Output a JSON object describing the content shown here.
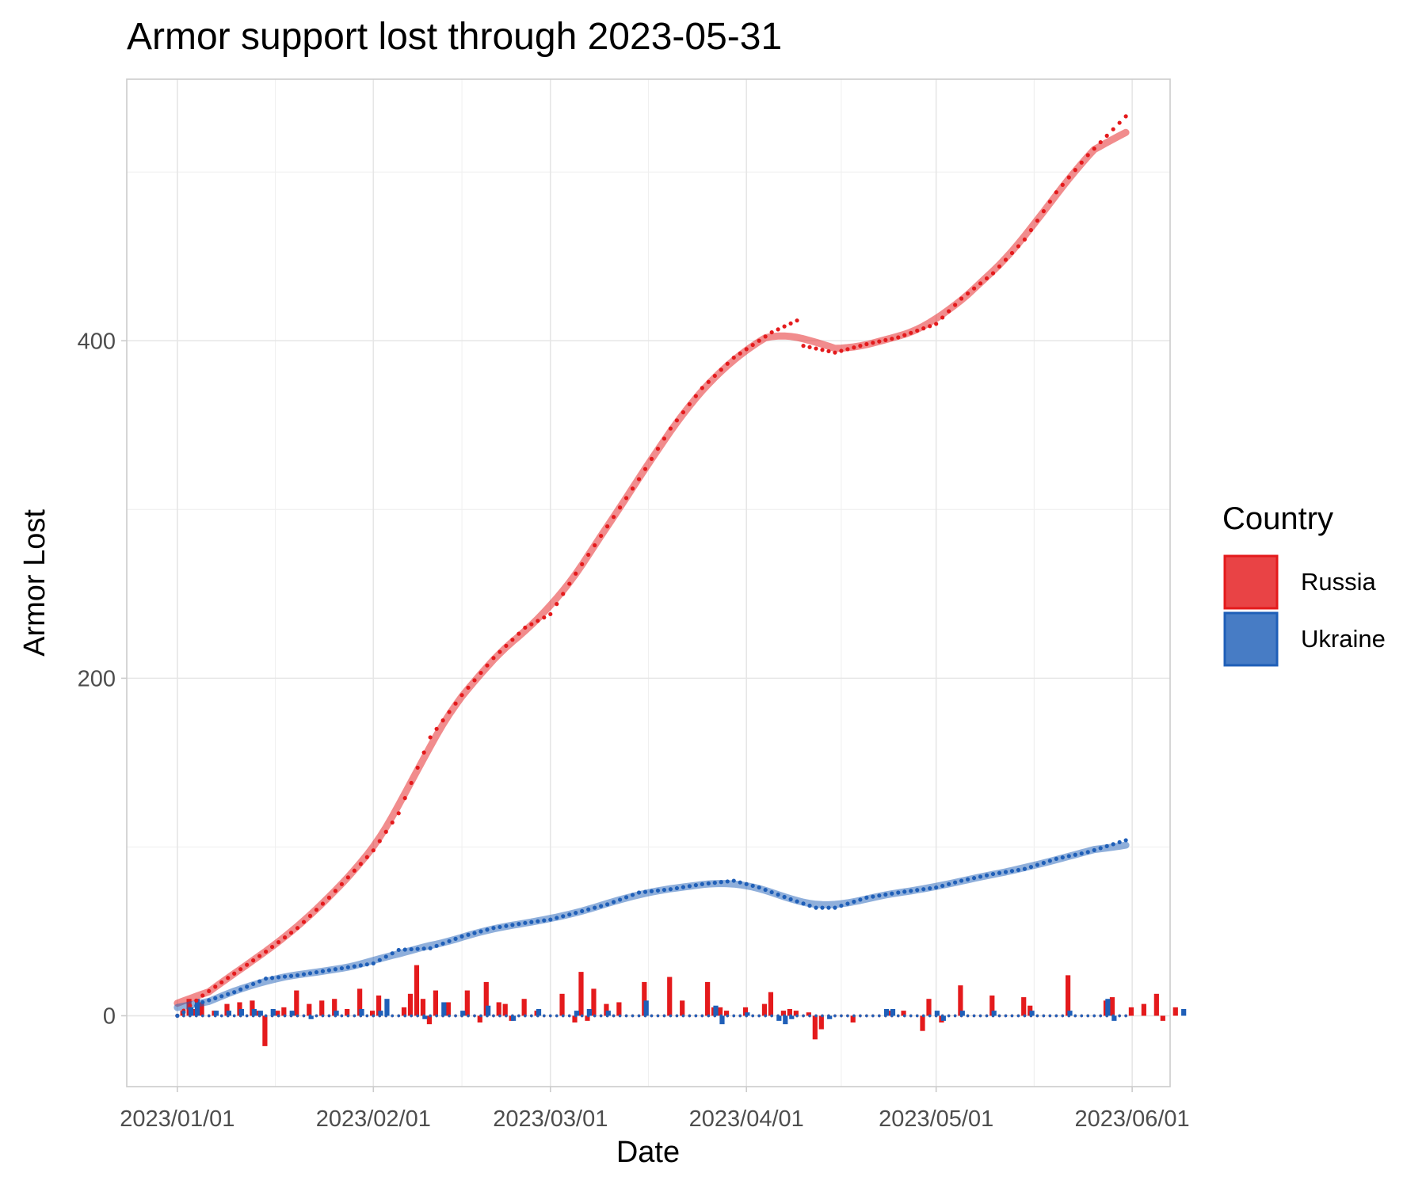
{
  "chart_data": {
    "type": "line",
    "title": "Armor support lost through 2023-05-31",
    "xlabel": "Date",
    "ylabel": "Armor Lost",
    "x_ticks": [
      "2023-01-01",
      "2023-02-01",
      "2023-03-01",
      "2023-04-01",
      "2023-05-01",
      "2023-06-01"
    ],
    "x_tick_labels": [
      "2023/01/01",
      "2023/02/01",
      "2023/03/01",
      "2023/04/01",
      "2023/05/01",
      "2023/06/01"
    ],
    "y_ticks": [
      0,
      200,
      400
    ],
    "y_tick_labels": [
      "0",
      "200",
      "400"
    ],
    "xlim": [
      "2022-12-24",
      "2023-06-07"
    ],
    "ylim": [
      -42,
      555
    ],
    "grid": true,
    "legend": {
      "title": "Country",
      "position": "right"
    },
    "marks": [
      "cumulative points",
      "smoothed trend line",
      "daily bars"
    ],
    "series": [
      {
        "name": "Russia",
        "color": "#e41a1c",
        "cumulative_anchors": [
          [
            "2023-01-01",
            0
          ],
          [
            "2023-01-05",
            12
          ],
          [
            "2023-01-10",
            25
          ],
          [
            "2023-01-15",
            38
          ],
          [
            "2023-01-20",
            52
          ],
          [
            "2023-01-25",
            70
          ],
          [
            "2023-02-01",
            98
          ],
          [
            "2023-02-05",
            120
          ],
          [
            "2023-02-10",
            165
          ],
          [
            "2023-02-15",
            190
          ],
          [
            "2023-02-20",
            212
          ],
          [
            "2023-02-25",
            230
          ],
          [
            "2023-03-01",
            238
          ],
          [
            "2023-03-05",
            262
          ],
          [
            "2023-03-10",
            290
          ],
          [
            "2023-03-15",
            318
          ],
          [
            "2023-03-20",
            348
          ],
          [
            "2023-03-25",
            372
          ],
          [
            "2023-03-30",
            390
          ],
          [
            "2023-04-05",
            405
          ],
          [
            "2023-04-09",
            412
          ],
          [
            "2023-04-10",
            397
          ],
          [
            "2023-04-15",
            393
          ],
          [
            "2023-04-20",
            398
          ],
          [
            "2023-04-25",
            402
          ],
          [
            "2023-05-01",
            410
          ],
          [
            "2023-05-05",
            425
          ],
          [
            "2023-05-10",
            440
          ],
          [
            "2023-05-15",
            460
          ],
          [
            "2023-05-20",
            488
          ],
          [
            "2023-05-25",
            510
          ],
          [
            "2023-05-31",
            533
          ]
        ],
        "daily_values": [
          0,
          3,
          10,
          4,
          8,
          0,
          3,
          0,
          7,
          0,
          8,
          0,
          9,
          3,
          -18,
          0,
          3,
          5,
          0,
          15,
          0,
          7,
          0,
          9,
          0,
          10,
          0,
          4,
          0,
          16,
          0,
          3,
          12,
          0,
          0,
          0,
          5,
          13,
          30,
          10,
          -5,
          15,
          0,
          8,
          0,
          0,
          15,
          0,
          -4,
          20,
          0,
          8,
          7,
          -3,
          0,
          10,
          0,
          3,
          0,
          0,
          0,
          13,
          0,
          -4,
          26,
          -3,
          16,
          0,
          7,
          0,
          8,
          0,
          0,
          0,
          20,
          0,
          0,
          0,
          23,
          0,
          9,
          0,
          0,
          0,
          20,
          5,
          5,
          3,
          0,
          0,
          5,
          0,
          0,
          7,
          14,
          0,
          3,
          4,
          3,
          0,
          2,
          -14,
          -8,
          0,
          0,
          0,
          0,
          -4,
          0,
          0,
          0,
          0,
          0,
          3,
          0,
          3,
          0,
          0,
          -9,
          10,
          0,
          -4,
          0,
          0,
          18,
          0,
          0,
          0,
          0,
          12,
          0,
          0,
          0,
          0,
          11,
          6,
          0,
          0,
          0,
          0,
          0,
          24,
          0,
          0,
          0,
          0,
          0,
          9,
          11,
          0,
          0,
          5,
          0,
          7,
          0,
          13,
          -3,
          0,
          5
        ]
      },
      {
        "name": "Ukraine",
        "color": "#1f5fb8",
        "cumulative_anchors": [
          [
            "2023-01-01",
            0
          ],
          [
            "2023-01-05",
            8
          ],
          [
            "2023-01-10",
            14
          ],
          [
            "2023-01-15",
            22
          ],
          [
            "2023-01-20",
            24
          ],
          [
            "2023-01-25",
            27
          ],
          [
            "2023-02-01",
            31
          ],
          [
            "2023-02-05",
            39
          ],
          [
            "2023-02-10",
            40
          ],
          [
            "2023-02-15",
            47
          ],
          [
            "2023-02-20",
            52
          ],
          [
            "2023-02-25",
            55
          ],
          [
            "2023-03-01",
            57
          ],
          [
            "2023-03-05",
            61
          ],
          [
            "2023-03-10",
            66
          ],
          [
            "2023-03-15",
            73
          ],
          [
            "2023-03-20",
            75
          ],
          [
            "2023-03-25",
            78
          ],
          [
            "2023-03-30",
            80
          ],
          [
            "2023-04-03",
            76
          ],
          [
            "2023-04-08",
            69
          ],
          [
            "2023-04-12",
            64
          ],
          [
            "2023-04-15",
            64
          ],
          [
            "2023-04-20",
            70
          ],
          [
            "2023-04-25",
            73
          ],
          [
            "2023-05-01",
            76
          ],
          [
            "2023-05-05",
            80
          ],
          [
            "2023-05-10",
            84
          ],
          [
            "2023-05-15",
            87
          ],
          [
            "2023-05-20",
            93
          ],
          [
            "2023-05-25",
            97
          ],
          [
            "2023-05-31",
            104
          ]
        ],
        "daily_values": [
          0,
          0,
          5,
          10,
          0,
          0,
          3,
          0,
          3,
          0,
          4,
          0,
          4,
          3,
          0,
          4,
          0,
          0,
          3,
          0,
          0,
          -2,
          0,
          0,
          0,
          3,
          0,
          0,
          0,
          4,
          0,
          0,
          3,
          10,
          0,
          0,
          0,
          0,
          0,
          -2,
          0,
          0,
          8,
          0,
          0,
          3,
          0,
          0,
          0,
          6,
          0,
          0,
          0,
          -3,
          0,
          0,
          0,
          4,
          0,
          0,
          0,
          0,
          0,
          3,
          0,
          4,
          0,
          0,
          3,
          0,
          0,
          0,
          0,
          0,
          9,
          0,
          0,
          0,
          0,
          0,
          0,
          0,
          0,
          0,
          0,
          6,
          -5,
          0,
          0,
          0,
          2,
          0,
          0,
          0,
          0,
          -3,
          -5,
          -2,
          0,
          0,
          0,
          0,
          0,
          -2,
          0,
          0,
          0,
          0,
          0,
          0,
          0,
          0,
          4,
          4,
          0,
          0,
          0,
          0,
          0,
          0,
          3,
          -3,
          0,
          0,
          3,
          0,
          0,
          0,
          0,
          3,
          0,
          0,
          0,
          0,
          0,
          3,
          0,
          0,
          0,
          0,
          0,
          3,
          0,
          0,
          0,
          0,
          0,
          10,
          -3,
          0,
          0,
          0,
          0,
          0,
          0,
          0,
          0,
          0,
          0,
          4
        ]
      }
    ]
  }
}
